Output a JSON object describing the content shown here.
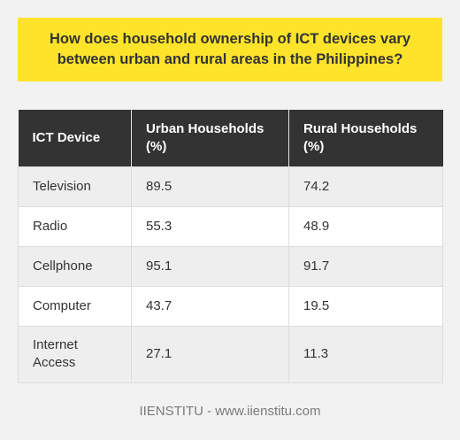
{
  "title": "How does household ownership of ICT devices vary between urban and rural areas in the Philippines?",
  "table": {
    "headers": [
      "ICT Device",
      "Urban Households (%)",
      "Rural Households (%)"
    ],
    "rows": [
      [
        "Television",
        "89.5",
        "74.2"
      ],
      [
        "Radio",
        "55.3",
        "48.9"
      ],
      [
        "Cellphone",
        "95.1",
        "91.7"
      ],
      [
        "Computer",
        "43.7",
        "19.5"
      ],
      [
        "Internet Access",
        "27.1",
        "11.3"
      ]
    ]
  },
  "footer": "IIENSTITU - www.iienstitu.com",
  "colors": {
    "title_background": "#fde42a",
    "header_background": "#333333",
    "page_background": "#f2f2f2"
  }
}
